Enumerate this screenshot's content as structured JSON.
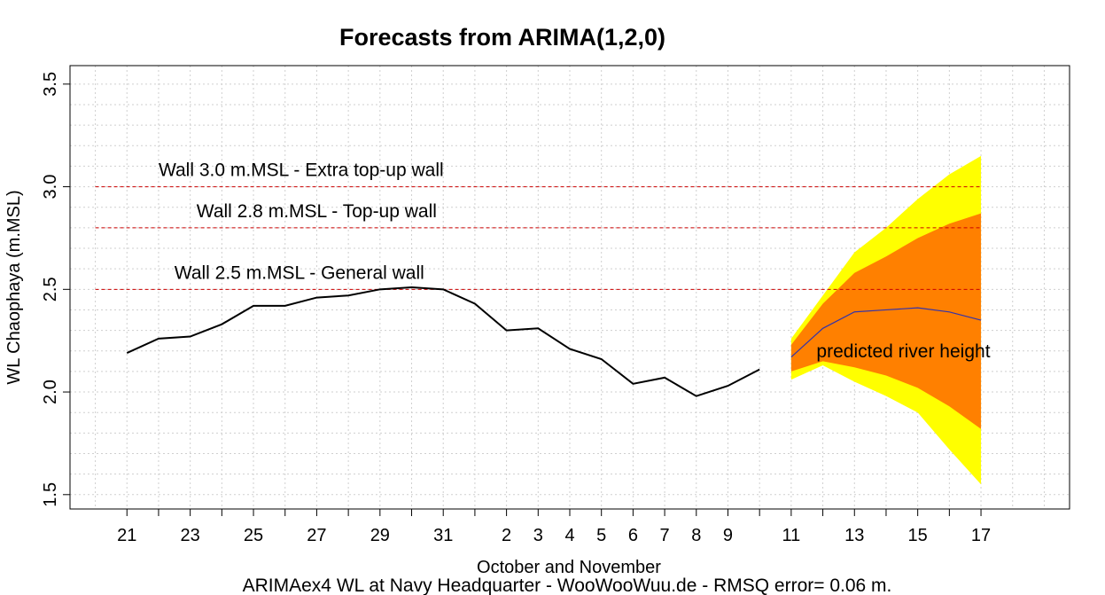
{
  "chart_data": {
    "type": "line",
    "title": "Forecasts from ARIMA(1,2,0)",
    "xlabel": "October and November",
    "ylabel": "WL Chaophaya (m.MSL)",
    "caption": "ARIMAex4 WL at Navy Headquarter - WooWooWuu.de - RMSQ error= 0.06  m.",
    "xlim": [
      19.2,
      50.8
    ],
    "ylim": [
      1.43,
      3.59
    ],
    "grid": true,
    "x_ticks": [
      {
        "x": 21,
        "label": "21"
      },
      {
        "x": 23,
        "label": "23"
      },
      {
        "x": 25,
        "label": "25"
      },
      {
        "x": 27,
        "label": "27"
      },
      {
        "x": 29,
        "label": "29"
      },
      {
        "x": 31,
        "label": "31"
      },
      {
        "x": 33,
        "label": "2"
      },
      {
        "x": 34,
        "label": "3"
      },
      {
        "x": 35,
        "label": "4"
      },
      {
        "x": 36,
        "label": "5"
      },
      {
        "x": 37,
        "label": "6"
      },
      {
        "x": 38,
        "label": "7"
      },
      {
        "x": 39,
        "label": "8"
      },
      {
        "x": 40,
        "label": "9"
      },
      {
        "x": 42,
        "label": "11"
      },
      {
        "x": 44,
        "label": "13"
      },
      {
        "x": 46,
        "label": "15"
      },
      {
        "x": 48,
        "label": "17"
      }
    ],
    "y_ticks": [
      {
        "y": 1.5,
        "label": "1.5"
      },
      {
        "y": 2.0,
        "label": "2.0"
      },
      {
        "y": 2.5,
        "label": "2.5"
      },
      {
        "y": 3.0,
        "label": "3.0"
      },
      {
        "y": 3.5,
        "label": "3.5"
      }
    ],
    "observed": {
      "x": [
        21,
        22,
        23,
        24,
        25,
        26,
        27,
        28,
        29,
        30,
        31,
        32,
        33,
        34,
        35,
        36,
        37,
        38,
        39,
        40,
        41
      ],
      "y": [
        2.19,
        2.26,
        2.27,
        2.33,
        2.42,
        2.42,
        2.46,
        2.47,
        2.5,
        2.51,
        2.5,
        2.43,
        2.3,
        2.31,
        2.21,
        2.16,
        2.04,
        2.07,
        1.98,
        2.03,
        2.11
      ],
      "color": "#000000"
    },
    "forecast": {
      "x": [
        42,
        43,
        44,
        45,
        46,
        47,
        48
      ],
      "mean": [
        2.17,
        2.31,
        2.39,
        2.4,
        2.41,
        2.39,
        2.35
      ],
      "lo80": [
        2.1,
        2.15,
        2.12,
        2.08,
        2.02,
        1.93,
        1.82
      ],
      "hi80": [
        2.23,
        2.43,
        2.58,
        2.66,
        2.75,
        2.82,
        2.87
      ],
      "lo95": [
        2.06,
        2.13,
        2.05,
        1.98,
        1.9,
        1.72,
        1.55
      ],
      "hi95": [
        2.26,
        2.47,
        2.68,
        2.8,
        2.94,
        3.06,
        3.15
      ],
      "mean_color": "#3333aa",
      "band80_color": "#ff8000",
      "band95_color": "#ffff00"
    },
    "reference_lines": [
      {
        "y": 3.0,
        "label": "Wall 3.0 m.MSL - Extra top-up wall",
        "label_x": 22
      },
      {
        "y": 2.8,
        "label": "Wall 2.8 m.MSL - Top-up wall",
        "label_x": 23.2
      },
      {
        "y": 2.5,
        "label": "Wall 2.5 m.MSL - General wall",
        "label_x": 22.5
      }
    ],
    "reference_color": "#cc0000",
    "annotation": {
      "text": "predicted river height",
      "x": 42.8,
      "y": 2.2
    }
  }
}
